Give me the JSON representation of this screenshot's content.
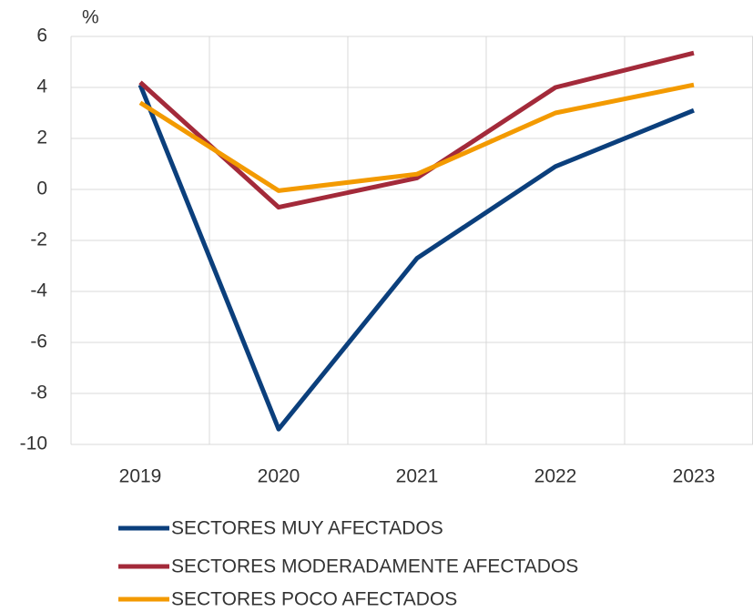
{
  "chart_data": {
    "type": "line",
    "y_axis_label": "%",
    "categories": [
      "2019",
      "2020",
      "2021",
      "2022",
      "2023"
    ],
    "series": [
      {
        "name": "SECTORES MUY AFECTADOS",
        "color": "#0b3f7c",
        "values": [
          4.1,
          -9.4,
          -2.7,
          0.9,
          3.1
        ]
      },
      {
        "name": "SECTORES MODERADAMENTE AFECTADOS",
        "color": "#a32a3a",
        "values": [
          4.2,
          -0.7,
          0.45,
          4.0,
          5.35
        ]
      },
      {
        "name": "SECTORES POCO AFECTADOS",
        "color": "#f39a00",
        "values": [
          3.4,
          -0.05,
          0.6,
          3.0,
          4.1
        ]
      }
    ],
    "ylim": [
      -10,
      6
    ],
    "yticks": [
      6,
      4,
      2,
      0,
      -2,
      -4,
      -6,
      -8,
      -10
    ],
    "grid": true
  }
}
